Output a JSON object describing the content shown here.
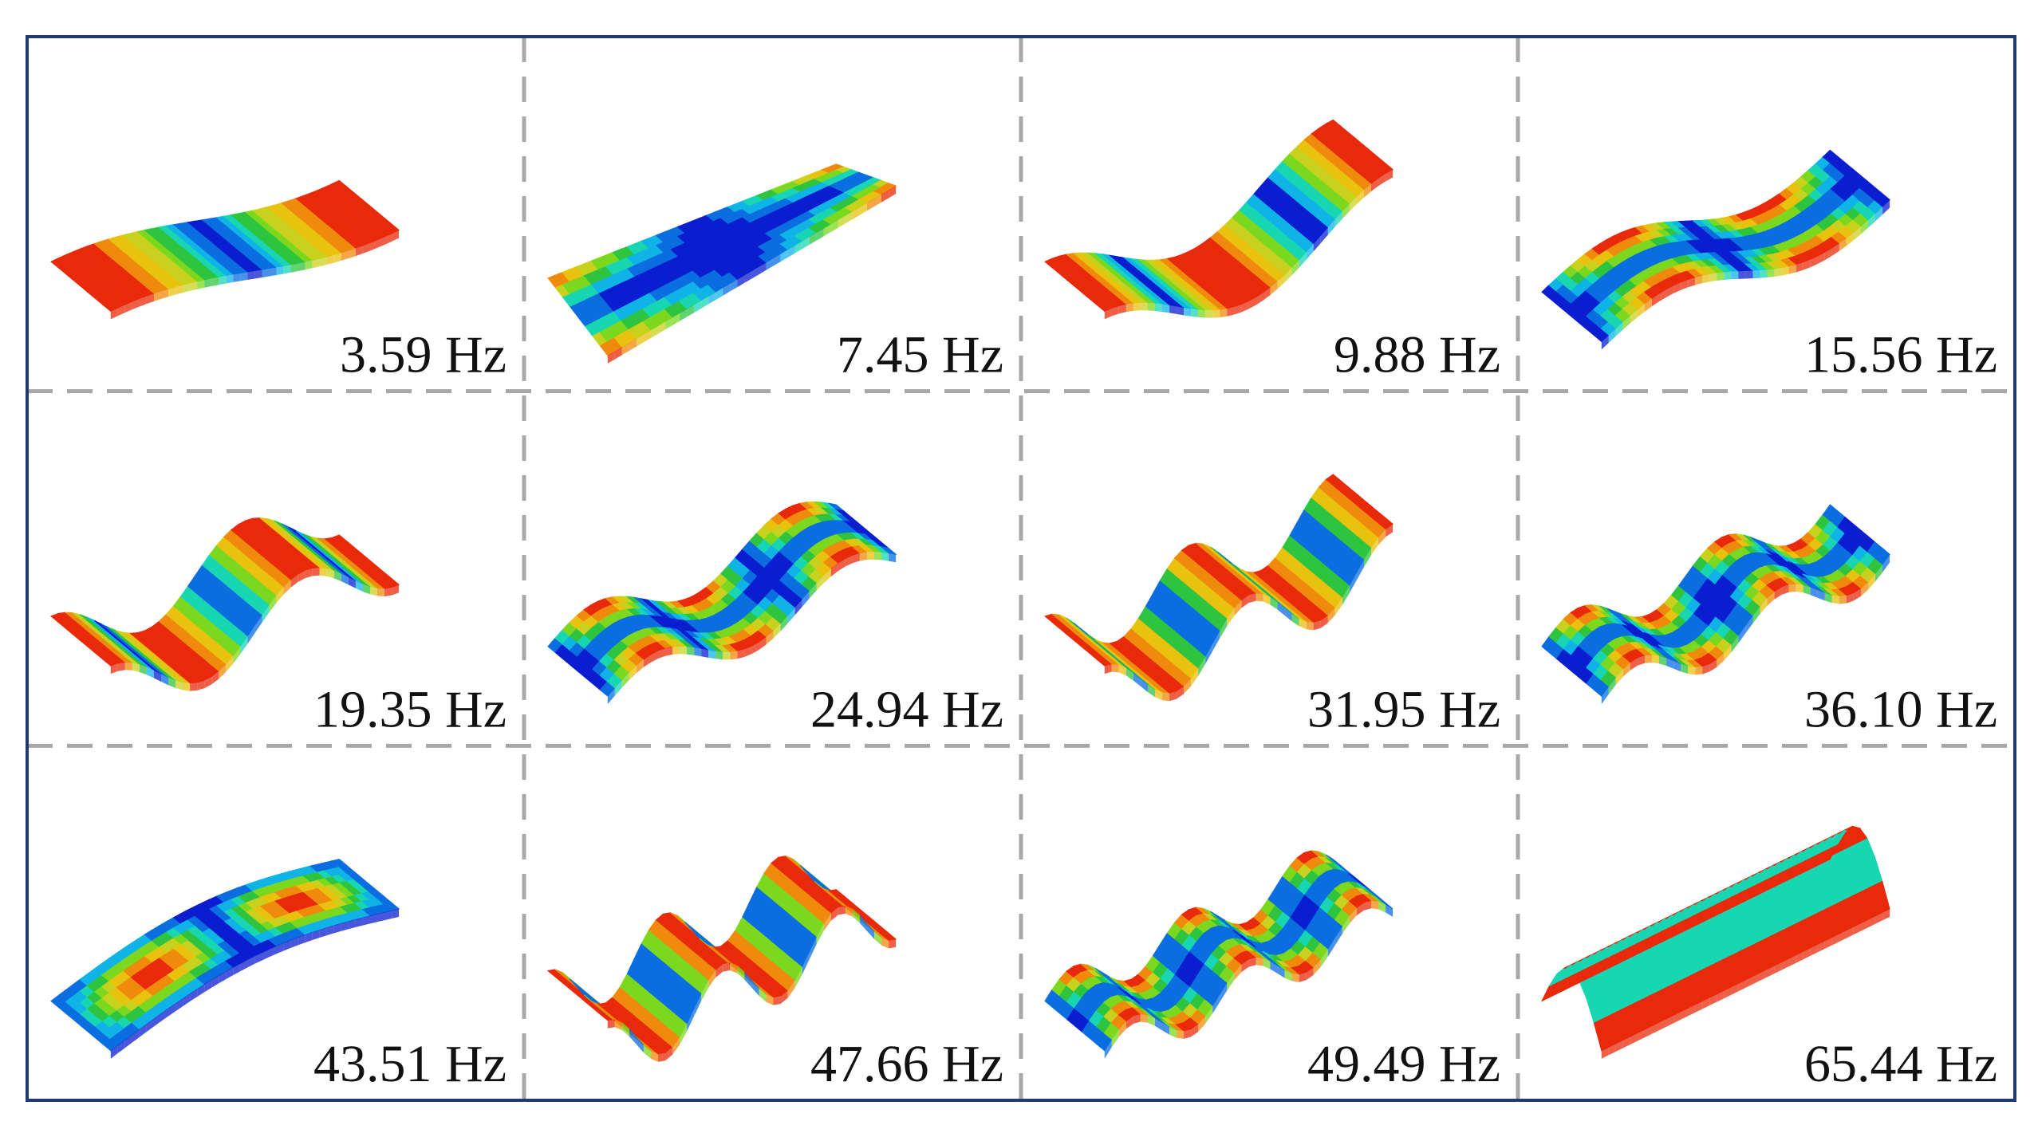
{
  "figure": {
    "rows": 3,
    "cols": 4,
    "frame_color": "#1f3a6e",
    "divider_color": "#a8a8a8",
    "colormap": [
      "#0a1ecf",
      "#0a6de0",
      "#10b3e6",
      "#19d6b3",
      "#2ec43f",
      "#7bd81f",
      "#c8d21e",
      "#e8c20e",
      "#f08a0c",
      "#e82a0a"
    ],
    "panels": [
      {
        "label": "3.59 Hz",
        "mode": "bend",
        "nx": 1,
        "ny": 0,
        "twist": 0
      },
      {
        "label": "7.45 Hz",
        "mode": "twist",
        "nx": 1,
        "ny": 1,
        "twist": 1
      },
      {
        "label": "9.88 Hz",
        "mode": "bend",
        "nx": 2,
        "ny": 0,
        "twist": 0
      },
      {
        "label": "15.56 Hz",
        "mode": "plate",
        "nx": 2,
        "ny": 1,
        "twist": 0
      },
      {
        "label": "19.35 Hz",
        "mode": "bend",
        "nx": 3,
        "ny": 0,
        "twist": 0
      },
      {
        "label": "24.94 Hz",
        "mode": "plate",
        "nx": 3,
        "ny": 1,
        "twist": 0
      },
      {
        "label": "31.95 Hz",
        "mode": "bend",
        "nx": 4,
        "ny": 0,
        "twist": 0
      },
      {
        "label": "36.10 Hz",
        "mode": "plate",
        "nx": 4,
        "ny": 1,
        "twist": 0
      },
      {
        "label": "43.51 Hz",
        "mode": "dome",
        "nx": 1,
        "ny": 1,
        "twist": 0
      },
      {
        "label": "47.66 Hz",
        "mode": "bend",
        "nx": 5,
        "ny": 0,
        "twist": 0
      },
      {
        "label": "49.49 Hz",
        "mode": "plate",
        "nx": 5,
        "ny": 1,
        "twist": 0
      },
      {
        "label": "65.44 Hz",
        "mode": "arch",
        "nx": 0,
        "ny": 2,
        "twist": 0
      }
    ]
  }
}
